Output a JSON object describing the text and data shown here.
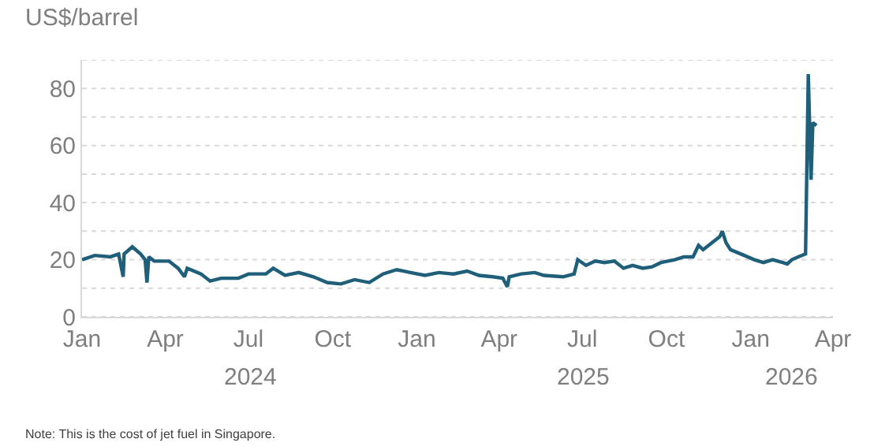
{
  "chart_data": {
    "type": "line",
    "ylabel": "US$/barrel",
    "annotations": [
      "2024",
      "2025",
      "2026",
      "Note: This is the cost of jet fuel in Singapore."
    ],
    "x": [
      "2024-01-01",
      "2024-01-15",
      "2024-02-01",
      "2024-02-10",
      "2024-02-15",
      "2024-02-16",
      "2024-02-25",
      "2024-03-05",
      "2024-03-10",
      "2024-03-12",
      "2024-03-14",
      "2024-03-20",
      "2024-04-05",
      "2024-04-15",
      "2024-04-22",
      "2024-04-25",
      "2024-05-10",
      "2024-05-20",
      "2024-06-01",
      "2024-06-20",
      "2024-07-01",
      "2024-07-20",
      "2024-07-28",
      "2024-08-10",
      "2024-08-25",
      "2024-09-10",
      "2024-09-25",
      "2024-10-10",
      "2024-10-25",
      "2024-11-10",
      "2024-11-25",
      "2024-12-10",
      "2024-12-25",
      "2025-01-10",
      "2025-01-25",
      "2025-02-10",
      "2025-02-25",
      "2025-03-10",
      "2025-03-25",
      "2025-04-05",
      "2025-04-10",
      "2025-04-12",
      "2025-04-25",
      "2025-05-10",
      "2025-05-20",
      "2025-06-10",
      "2025-06-22",
      "2025-06-26",
      "2025-07-05",
      "2025-07-15",
      "2025-07-25",
      "2025-08-05",
      "2025-08-15",
      "2025-08-25",
      "2025-09-05",
      "2025-09-15",
      "2025-09-25",
      "2025-10-10",
      "2025-10-20",
      "2025-10-30",
      "2025-11-05",
      "2025-11-10",
      "2025-11-20",
      "2025-11-28",
      "2025-12-01",
      "2025-12-05",
      "2025-12-10",
      "2025-12-25",
      "2026-01-05",
      "2026-01-15",
      "2026-01-25",
      "2026-02-05",
      "2026-02-10",
      "2026-02-15",
      "2026-02-22",
      "2026-03-02",
      "2026-03-05",
      "2026-03-08",
      "2026-03-10",
      "2026-03-14"
    ],
    "series": [
      {
        "color": "#1f5f7a",
        "values": [
          20,
          21.5,
          21,
          22,
          14,
          22,
          24.5,
          22,
          20,
          12,
          21,
          19.5,
          19.5,
          17,
          14,
          17,
          15,
          12.5,
          13.5,
          13.5,
          15,
          15,
          17,
          14.5,
          15.5,
          14,
          12,
          11.5,
          13,
          12,
          15,
          16.5,
          15.5,
          14.5,
          15.5,
          15,
          16,
          14.5,
          14,
          13.5,
          10.5,
          14,
          15,
          15.5,
          14.5,
          14,
          15,
          20,
          18,
          19.5,
          19,
          19.5,
          17,
          18,
          17,
          17.5,
          19,
          20,
          21,
          21,
          25,
          23.5,
          26,
          28,
          30,
          26,
          23.5,
          21.5,
          20,
          19,
          20,
          19,
          18.5,
          20,
          21,
          22,
          85,
          48,
          68,
          67
        ]
      }
    ],
    "xlim": [
      "2024-01-01",
      "2026-04-01"
    ],
    "xticks": [
      {
        "value": "2024-01-01",
        "label": "Jan"
      },
      {
        "value": "2024-04-01",
        "label": "Apr"
      },
      {
        "value": "2024-07-01",
        "label": "Jul"
      },
      {
        "value": "2024-10-01",
        "label": "Oct"
      },
      {
        "value": "2025-01-01",
        "label": "Jan"
      },
      {
        "value": "2025-04-01",
        "label": "Apr"
      },
      {
        "value": "2025-07-01",
        "label": "Jul"
      },
      {
        "value": "2025-10-01",
        "label": "Oct"
      },
      {
        "value": "2026-01-01",
        "label": "Jan"
      },
      {
        "value": "2026-04-01",
        "label": "Apr"
      }
    ],
    "ylim": [
      0,
      90
    ],
    "yticks": [
      0,
      {
        "value": 10,
        "label": null
      },
      20,
      {
        "value": 30,
        "label": null
      },
      40,
      {
        "value": 50,
        "label": null
      },
      60,
      {
        "value": 70,
        "label": null
      },
      80,
      {
        "value": 90,
        "label": null
      }
    ],
    "grid": "y",
    "marker": "none",
    "line_style": "solid"
  }
}
